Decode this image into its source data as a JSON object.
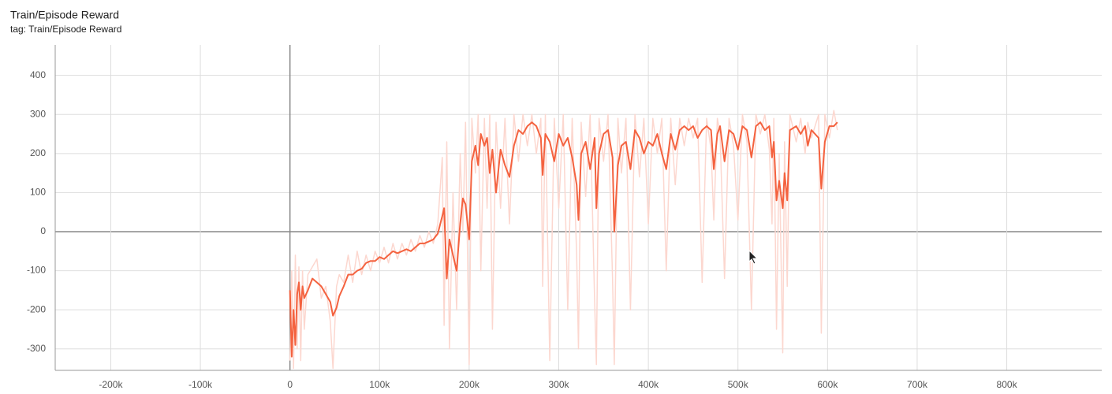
{
  "chart_data": {
    "type": "line",
    "title": "Train/Episode Reward",
    "subtitle": "tag: Train/Episode Reward",
    "x": [
      0,
      2000,
      4000,
      6000,
      8000,
      10000,
      12000,
      14000,
      16000,
      20000,
      25000,
      30000,
      35000,
      40000,
      45000,
      48000,
      52000,
      55000,
      60000,
      65000,
      70000,
      75000,
      80000,
      85000,
      90000,
      95000,
      100000,
      105000,
      110000,
      115000,
      120000,
      125000,
      130000,
      135000,
      140000,
      145000,
      150000,
      155000,
      160000,
      165000,
      170000,
      172000,
      175000,
      178000,
      182000,
      186000,
      190000,
      193000,
      196000,
      200000,
      203000,
      207000,
      210000,
      213000,
      217000,
      220000,
      223000,
      226000,
      230000,
      235000,
      240000,
      245000,
      250000,
      255000,
      260000,
      265000,
      270000,
      275000,
      280000,
      282000,
      285000,
      290000,
      295000,
      300000,
      305000,
      310000,
      315000,
      320000,
      322000,
      325000,
      330000,
      335000,
      340000,
      342000,
      345000,
      350000,
      355000,
      360000,
      362000,
      366000,
      370000,
      375000,
      380000,
      385000,
      390000,
      395000,
      400000,
      405000,
      410000,
      415000,
      420000,
      425000,
      430000,
      435000,
      440000,
      445000,
      450000,
      455000,
      460000,
      465000,
      470000,
      473000,
      477000,
      480000,
      485000,
      490000,
      495000,
      500000,
      505000,
      510000,
      515000,
      520000,
      525000,
      530000,
      535000,
      538000,
      540000,
      543000,
      546000,
      550000,
      552000,
      555000,
      558000,
      565000,
      570000,
      575000,
      578000,
      582000,
      590000,
      593000,
      597000,
      602000,
      607000,
      611000
    ],
    "series": [
      {
        "color": "#fcd7cf",
        "values": [
          -330,
          -100,
          -350,
          -60,
          -300,
          -90,
          -330,
          -100,
          -250,
          -110,
          -90,
          -70,
          -170,
          -140,
          -230,
          -350,
          -140,
          -110,
          -130,
          -60,
          -130,
          -50,
          -110,
          -60,
          -100,
          -50,
          -80,
          -40,
          -80,
          -30,
          -70,
          -30,
          -60,
          -20,
          -50,
          -10,
          -40,
          0,
          -30,
          20,
          190,
          -240,
          230,
          -300,
          100,
          -200,
          200,
          0,
          280,
          -340,
          290,
          150,
          300,
          -100,
          290,
          60,
          300,
          -250,
          280,
          60,
          290,
          20,
          300,
          180,
          300,
          220,
          300,
          200,
          290,
          -140,
          300,
          -330,
          290,
          60,
          300,
          -200,
          290,
          -60,
          -300,
          280,
          90,
          300,
          -180,
          -340,
          290,
          180,
          300,
          -120,
          -340,
          290,
          150,
          290,
          -200,
          300,
          140,
          290,
          20,
          290,
          200,
          290,
          -100,
          290,
          120,
          290,
          220,
          290,
          240,
          290,
          -130,
          290,
          210,
          30,
          290,
          250,
          -120,
          290,
          220,
          30,
          300,
          230,
          -200,
          300,
          250,
          300,
          210,
          20,
          290,
          -250,
          200,
          -310,
          230,
          -140,
          300,
          230,
          290,
          200,
          280,
          240,
          300,
          -260,
          300,
          240,
          310,
          260
        ]
      },
      {
        "color": "#f4623f",
        "values": [
          -150,
          -320,
          -200,
          -290,
          -160,
          -130,
          -200,
          -140,
          -170,
          -150,
          -120,
          -130,
          -140,
          -160,
          -180,
          -215,
          -195,
          -165,
          -140,
          -110,
          -110,
          -100,
          -95,
          -80,
          -75,
          -75,
          -65,
          -70,
          -60,
          -50,
          -55,
          -50,
          -45,
          -50,
          -40,
          -30,
          -30,
          -25,
          -20,
          -5,
          40,
          60,
          -120,
          -20,
          -60,
          -100,
          20,
          85,
          70,
          -20,
          180,
          220,
          170,
          250,
          220,
          240,
          150,
          210,
          100,
          210,
          170,
          140,
          220,
          260,
          250,
          270,
          280,
          270,
          240,
          145,
          250,
          230,
          180,
          250,
          220,
          240,
          190,
          120,
          30,
          200,
          230,
          160,
          240,
          60,
          200,
          250,
          260,
          190,
          0,
          170,
          220,
          230,
          160,
          260,
          240,
          200,
          230,
          220,
          250,
          200,
          160,
          250,
          210,
          260,
          270,
          260,
          270,
          240,
          260,
          270,
          260,
          160,
          250,
          270,
          180,
          260,
          250,
          210,
          270,
          260,
          190,
          270,
          280,
          260,
          270,
          190,
          230,
          80,
          130,
          60,
          150,
          80,
          260,
          270,
          250,
          270,
          220,
          260,
          240,
          110,
          230,
          270,
          270,
          280
        ]
      }
    ],
    "xlim": [
      -262000,
      906000
    ],
    "ylim": [
      -355,
      478
    ],
    "xticks": [
      {
        "value": -200000,
        "label": "-200k"
      },
      {
        "value": -100000,
        "label": "-100k"
      },
      0,
      {
        "value": 100000,
        "label": "100k"
      },
      {
        "value": 200000,
        "label": "200k"
      },
      {
        "value": 300000,
        "label": "300k"
      },
      {
        "value": 400000,
        "label": "400k"
      },
      {
        "value": 500000,
        "label": "500k"
      },
      {
        "value": 600000,
        "label": "600k"
      },
      {
        "value": 700000,
        "label": "700k"
      },
      {
        "value": 800000,
        "label": "800k"
      }
    ],
    "yticks": [
      -300,
      -200,
      -100,
      0,
      100,
      200,
      300,
      400
    ],
    "grid": true
  }
}
